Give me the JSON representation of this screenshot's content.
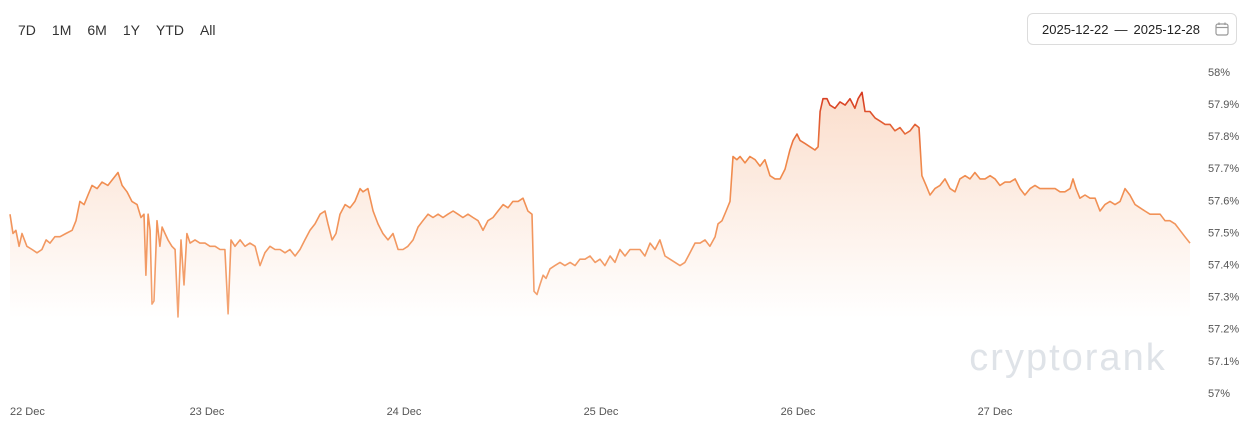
{
  "controls": {
    "range_buttons": [
      "7D",
      "1M",
      "6M",
      "1Y",
      "YTD",
      "All"
    ],
    "date_from": "2025-12-22",
    "date_separator": "—",
    "date_to": "2025-12-28"
  },
  "chart_data": {
    "type": "area",
    "watermark": "cryptorank",
    "color": "#f0894a",
    "peak_color": "#d5351d",
    "grid": false,
    "xlim": [
      0,
      6.05
    ],
    "xticks": [
      {
        "value": 0,
        "label": "22 Dec"
      },
      {
        "value": 1,
        "label": "23 Dec"
      },
      {
        "value": 2,
        "label": "24 Dec"
      },
      {
        "value": 3,
        "label": "25 Dec"
      },
      {
        "value": 4,
        "label": "26 Dec"
      },
      {
        "value": 5,
        "label": "27 Dec"
      }
    ],
    "ylim": [
      57,
      58
    ],
    "yticks": [
      {
        "value": 57,
        "label": "57%"
      },
      {
        "value": 57.1,
        "label": "57.1%"
      },
      {
        "value": 57.2,
        "label": "57.2%"
      },
      {
        "value": 57.3,
        "label": "57.3%"
      },
      {
        "value": 57.4,
        "label": "57.4%"
      },
      {
        "value": 57.5,
        "label": "57.5%"
      },
      {
        "value": 57.6,
        "label": "57.6%"
      },
      {
        "value": 57.7,
        "label": "57.7%"
      },
      {
        "value": 57.8,
        "label": "57.8%"
      },
      {
        "value": 57.9,
        "label": "57.9%"
      },
      {
        "value": 58,
        "label": "58%"
      }
    ],
    "x": [
      0.0,
      0.015,
      0.03,
      0.046,
      0.061,
      0.086,
      0.112,
      0.137,
      0.162,
      0.183,
      0.203,
      0.228,
      0.254,
      0.284,
      0.315,
      0.335,
      0.355,
      0.376,
      0.396,
      0.416,
      0.442,
      0.467,
      0.497,
      0.523,
      0.548,
      0.569,
      0.594,
      0.619,
      0.645,
      0.665,
      0.68,
      0.69,
      0.701,
      0.711,
      0.721,
      0.731,
      0.746,
      0.761,
      0.772,
      0.787,
      0.802,
      0.822,
      0.838,
      0.853,
      0.868,
      0.883,
      0.898,
      0.914,
      0.939,
      0.964,
      0.99,
      1.015,
      1.041,
      1.066,
      1.091,
      1.107,
      1.122,
      1.142,
      1.168,
      1.193,
      1.218,
      1.244,
      1.269,
      1.294,
      1.32,
      1.345,
      1.371,
      1.396,
      1.421,
      1.447,
      1.472,
      1.497,
      1.523,
      1.548,
      1.574,
      1.599,
      1.614,
      1.635,
      1.655,
      1.675,
      1.701,
      1.726,
      1.751,
      1.777,
      1.792,
      1.817,
      1.843,
      1.868,
      1.893,
      1.919,
      1.944,
      1.97,
      1.995,
      2.02,
      2.046,
      2.071,
      2.096,
      2.122,
      2.147,
      2.173,
      2.198,
      2.223,
      2.249,
      2.274,
      2.299,
      2.325,
      2.35,
      2.376,
      2.401,
      2.426,
      2.452,
      2.477,
      2.503,
      2.528,
      2.553,
      2.579,
      2.604,
      2.629,
      2.65,
      2.66,
      2.675,
      2.69,
      2.706,
      2.721,
      2.741,
      2.766,
      2.792,
      2.817,
      2.843,
      2.868,
      2.893,
      2.919,
      2.944,
      2.97,
      2.995,
      3.02,
      3.046,
      3.071,
      3.096,
      3.122,
      3.147,
      3.173,
      3.198,
      3.223,
      3.249,
      3.274,
      3.299,
      3.325,
      3.35,
      3.376,
      3.401,
      3.426,
      3.452,
      3.477,
      3.503,
      3.528,
      3.553,
      3.579,
      3.594,
      3.614,
      3.635,
      3.655,
      3.67,
      3.69,
      3.706,
      3.731,
      3.756,
      3.782,
      3.807,
      3.832,
      3.858,
      3.883,
      3.909,
      3.934,
      3.959,
      3.975,
      3.995,
      4.01,
      4.036,
      4.061,
      4.086,
      4.102,
      4.112,
      4.127,
      4.147,
      4.162,
      4.188,
      4.213,
      4.239,
      4.264,
      4.289,
      4.305,
      4.325,
      4.34,
      4.365,
      4.391,
      4.416,
      4.442,
      4.467,
      4.492,
      4.518,
      4.543,
      4.569,
      4.594,
      4.614,
      4.629,
      4.65,
      4.67,
      4.695,
      4.721,
      4.746,
      4.772,
      4.797,
      4.822,
      4.848,
      4.873,
      4.898,
      4.924,
      4.949,
      4.975,
      5.0,
      5.025,
      5.051,
      5.076,
      5.102,
      5.127,
      5.152,
      5.178,
      5.203,
      5.228,
      5.254,
      5.279,
      5.305,
      5.33,
      5.355,
      5.381,
      5.396,
      5.411,
      5.431,
      5.457,
      5.482,
      5.508,
      5.533,
      5.558,
      5.584,
      5.609,
      5.635,
      5.66,
      5.685,
      5.711,
      5.736,
      5.761,
      5.787,
      5.812,
      5.838,
      5.863,
      5.888,
      5.914,
      5.939,
      5.964,
      5.99
    ],
    "values": [
      57.56,
      57.5,
      57.51,
      57.46,
      57.5,
      57.46,
      57.45,
      57.44,
      57.45,
      57.48,
      57.47,
      57.49,
      57.49,
      57.5,
      57.51,
      57.54,
      57.6,
      57.59,
      57.62,
      57.65,
      57.64,
      57.66,
      57.65,
      57.67,
      57.69,
      57.65,
      57.63,
      57.6,
      57.59,
      57.55,
      57.56,
      57.37,
      57.56,
      57.51,
      57.28,
      57.29,
      57.54,
      57.46,
      57.52,
      57.5,
      57.48,
      57.46,
      57.45,
      57.24,
      57.48,
      57.34,
      57.5,
      57.47,
      57.48,
      57.47,
      57.47,
      57.46,
      57.46,
      57.45,
      57.45,
      57.25,
      57.48,
      57.46,
      57.48,
      57.46,
      57.47,
      57.46,
      57.4,
      57.44,
      57.46,
      57.45,
      57.45,
      57.44,
      57.45,
      57.43,
      57.45,
      57.48,
      57.51,
      57.53,
      57.56,
      57.57,
      57.53,
      57.48,
      57.5,
      57.56,
      57.59,
      57.58,
      57.6,
      57.64,
      57.63,
      57.64,
      57.57,
      57.53,
      57.5,
      57.48,
      57.5,
      57.45,
      57.45,
      57.46,
      57.48,
      57.52,
      57.54,
      57.56,
      57.55,
      57.56,
      57.55,
      57.56,
      57.57,
      57.56,
      57.55,
      57.56,
      57.55,
      57.54,
      57.51,
      57.54,
      57.55,
      57.57,
      57.59,
      57.58,
      57.6,
      57.6,
      57.61,
      57.57,
      57.56,
      57.32,
      57.31,
      57.34,
      57.37,
      57.36,
      57.39,
      57.4,
      57.41,
      57.4,
      57.41,
      57.4,
      57.42,
      57.42,
      57.43,
      57.41,
      57.42,
      57.4,
      57.43,
      57.41,
      57.45,
      57.43,
      57.45,
      57.45,
      57.45,
      57.43,
      57.47,
      57.45,
      57.48,
      57.43,
      57.42,
      57.41,
      57.4,
      57.41,
      57.44,
      57.47,
      57.47,
      57.48,
      57.46,
      57.49,
      57.53,
      57.54,
      57.57,
      57.6,
      57.74,
      57.73,
      57.74,
      57.72,
      57.74,
      57.73,
      57.71,
      57.73,
      57.68,
      57.67,
      57.67,
      57.7,
      57.76,
      57.79,
      57.81,
      57.79,
      57.78,
      57.77,
      57.76,
      57.77,
      57.88,
      57.92,
      57.92,
      57.9,
      57.89,
      57.91,
      57.9,
      57.92,
      57.89,
      57.92,
      57.94,
      57.88,
      57.88,
      57.86,
      57.85,
      57.84,
      57.84,
      57.82,
      57.83,
      57.81,
      57.82,
      57.84,
      57.83,
      57.68,
      57.65,
      57.62,
      57.64,
      57.65,
      57.67,
      57.64,
      57.63,
      57.67,
      57.68,
      57.67,
      57.69,
      57.67,
      57.67,
      57.68,
      57.67,
      57.65,
      57.66,
      57.66,
      57.67,
      57.64,
      57.62,
      57.64,
      57.65,
      57.64,
      57.64,
      57.64,
      57.64,
      57.63,
      57.63,
      57.64,
      57.67,
      57.64,
      57.61,
      57.62,
      57.61,
      57.61,
      57.57,
      57.59,
      57.6,
      57.59,
      57.6,
      57.64,
      57.62,
      57.59,
      57.58,
      57.57,
      57.56,
      57.56,
      57.56,
      57.54,
      57.54,
      57.53,
      57.51,
      57.49,
      57.47
    ]
  }
}
